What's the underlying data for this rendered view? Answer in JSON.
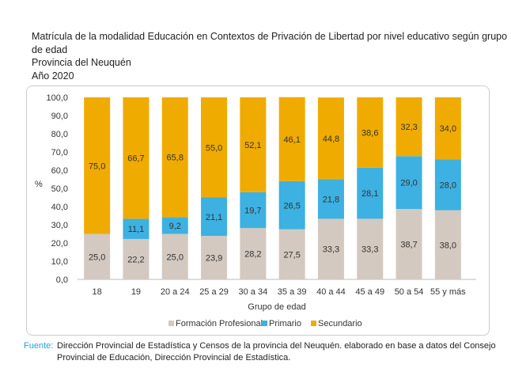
{
  "title_lines": [
    "Matrícula de la modalidad Educación en Contextos de Privación de Libertad por nivel educativo según grupo",
    "de edad",
    "Provincia del Neuquén",
    "Año 2020"
  ],
  "chart_data": {
    "type": "bar",
    "stacked": true,
    "categories": [
      "18",
      "19",
      "20 a 24",
      "25 a 29",
      "30 a 34",
      "35 a 39",
      "40 a 44",
      "45 a 49",
      "50 a 54",
      "55 y más"
    ],
    "series": [
      {
        "name": "Formación Profesional",
        "color": "#d3c9c0",
        "values": [
          25.0,
          22.2,
          25.0,
          23.9,
          28.2,
          27.5,
          33.3,
          33.3,
          38.7,
          38.0
        ]
      },
      {
        "name": "Primario",
        "color": "#3db1e2",
        "values": [
          0.0,
          11.1,
          9.2,
          21.1,
          19.7,
          26.5,
          21.8,
          28.1,
          29.0,
          28.0
        ]
      },
      {
        "name": "Secundario",
        "color": "#f0ab00",
        "values": [
          75.0,
          66.7,
          65.8,
          55.0,
          52.1,
          46.1,
          44.8,
          38.6,
          32.3,
          34.0
        ]
      }
    ],
    "xlabel": "Grupo de edad",
    "ylabel": "%",
    "ylim": [
      0,
      100
    ],
    "yticks": [
      "0,0",
      "10,0",
      "20,0",
      "30,0",
      "40,0",
      "50,0",
      "60,0",
      "70,0",
      "80,0",
      "90,0",
      "100,0"
    ],
    "grid": false,
    "legend": "bottom"
  },
  "source": {
    "label": "Fuente:",
    "text": "Dirección Provincial de Estadística y Censos de la provincia del Neuquén. elaborado en base a datos del Consejo Provincial de Educación, Dirección Provincial de Estadística."
  }
}
